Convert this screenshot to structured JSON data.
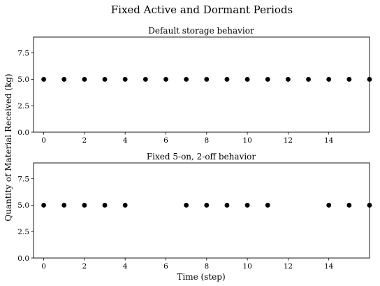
{
  "chart_data": {
    "title": "Fixed Active and Dormant Periods",
    "ylabel": "Quantity of Material Received (kg)",
    "xlabel": "Time (step)",
    "panels": [
      {
        "type": "scatter",
        "title": "Default storage behavior",
        "x": [
          0,
          1,
          2,
          3,
          4,
          5,
          6,
          7,
          8,
          9,
          10,
          11,
          12,
          13,
          14,
          15,
          16
        ],
        "y": [
          5,
          5,
          5,
          5,
          5,
          5,
          5,
          5,
          5,
          5,
          5,
          5,
          5,
          5,
          5,
          5,
          5
        ],
        "xlim": [
          -0.5,
          16
        ],
        "ylim": [
          0,
          9
        ],
        "xticks": [
          "0",
          "2",
          "4",
          "6",
          "8",
          "10",
          "12",
          "14"
        ],
        "yticks": [
          "0.0",
          "2.5",
          "5.0",
          "7.5"
        ],
        "color": "#000000",
        "grid": false
      },
      {
        "type": "scatter",
        "title": "Fixed 5-on, 2-off behavior",
        "x": [
          0,
          1,
          2,
          3,
          4,
          7,
          8,
          9,
          10,
          11,
          14,
          15,
          16
        ],
        "y": [
          5,
          5,
          5,
          5,
          5,
          5,
          5,
          5,
          5,
          5,
          5,
          5,
          5
        ],
        "xlim": [
          -0.5,
          16
        ],
        "ylim": [
          0,
          9
        ],
        "xticks": [
          "0",
          "2",
          "4",
          "6",
          "8",
          "10",
          "12",
          "14"
        ],
        "yticks": [
          "0.0",
          "2.5",
          "5.0",
          "7.5"
        ],
        "color": "#000000",
        "grid": false
      }
    ]
  }
}
